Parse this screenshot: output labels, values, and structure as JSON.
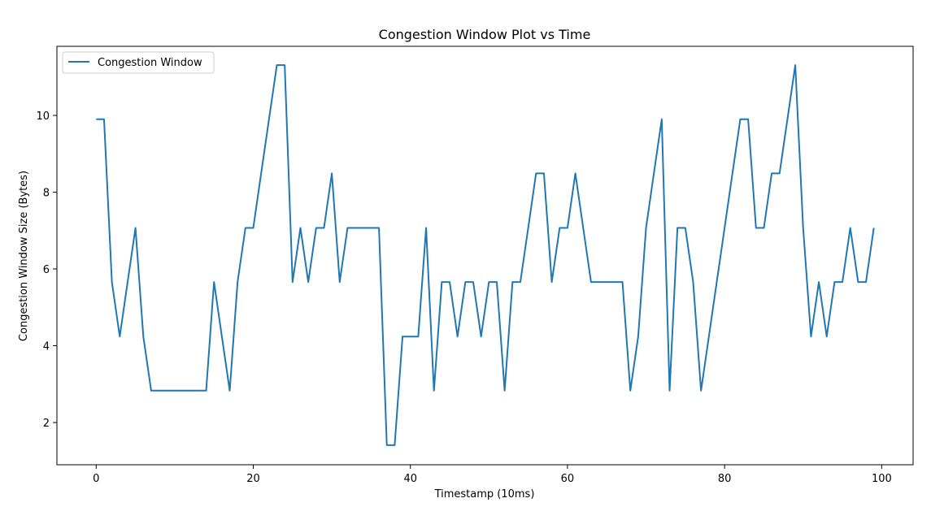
{
  "chart_data": {
    "type": "line",
    "title": "Congestion Window Plot vs Time",
    "xlabel": "Timestamp (10ms)",
    "ylabel": "Congestion Window Size (Bytes)",
    "xlim": [
      -5,
      104
    ],
    "ylim": [
      0.9,
      11.8
    ],
    "xticks": [
      0,
      20,
      40,
      60,
      80,
      100
    ],
    "yticks": [
      2,
      4,
      6,
      8,
      10
    ],
    "grid": false,
    "legend_position": "upper-left",
    "series": [
      {
        "name": "Congestion Window",
        "color": "#1f77b4",
        "x": [
          0,
          1,
          2,
          3,
          4,
          5,
          6,
          7,
          8,
          9,
          10,
          11,
          12,
          13,
          14,
          15,
          16,
          17,
          18,
          19,
          20,
          21,
          22,
          23,
          24,
          25,
          26,
          27,
          28,
          29,
          30,
          31,
          32,
          33,
          34,
          35,
          36,
          37,
          38,
          39,
          40,
          41,
          42,
          43,
          44,
          45,
          46,
          47,
          48,
          49,
          50,
          51,
          52,
          53,
          54,
          55,
          56,
          57,
          58,
          59,
          60,
          61,
          62,
          63,
          64,
          65,
          66,
          67,
          68,
          69,
          70,
          71,
          72,
          73,
          74,
          75,
          76,
          77,
          78,
          79,
          80,
          81,
          82,
          83,
          84,
          85,
          86,
          87,
          88,
          89,
          90,
          91,
          92,
          93,
          94,
          95,
          96,
          97,
          98,
          99
        ],
        "values": [
          9.9,
          9.9,
          5.66,
          4.24,
          5.66,
          7.07,
          4.24,
          2.83,
          2.83,
          2.83,
          2.83,
          2.83,
          2.83,
          2.83,
          2.83,
          5.66,
          4.24,
          2.83,
          5.66,
          7.07,
          7.07,
          8.49,
          9.9,
          11.31,
          11.31,
          5.66,
          7.07,
          5.66,
          7.07,
          7.07,
          8.49,
          5.66,
          7.07,
          7.07,
          7.07,
          7.07,
          7.07,
          1.41,
          1.41,
          4.24,
          4.24,
          4.24,
          7.07,
          2.83,
          5.66,
          5.66,
          4.24,
          5.66,
          5.66,
          4.24,
          5.66,
          5.66,
          2.83,
          5.66,
          5.66,
          7.07,
          8.49,
          8.49,
          5.66,
          7.07,
          7.07,
          8.49,
          7.07,
          5.66,
          5.66,
          5.66,
          5.66,
          5.66,
          2.83,
          4.24,
          7.07,
          8.49,
          9.9,
          2.83,
          7.07,
          7.07,
          5.66,
          2.83,
          4.24,
          5.66,
          7.07,
          8.49,
          9.9,
          9.9,
          7.07,
          7.07,
          8.49,
          8.49,
          9.9,
          11.31,
          7.07,
          4.24,
          5.66,
          4.24,
          5.66,
          5.66,
          7.07,
          5.66,
          5.66,
          7.07
        ]
      }
    ]
  }
}
